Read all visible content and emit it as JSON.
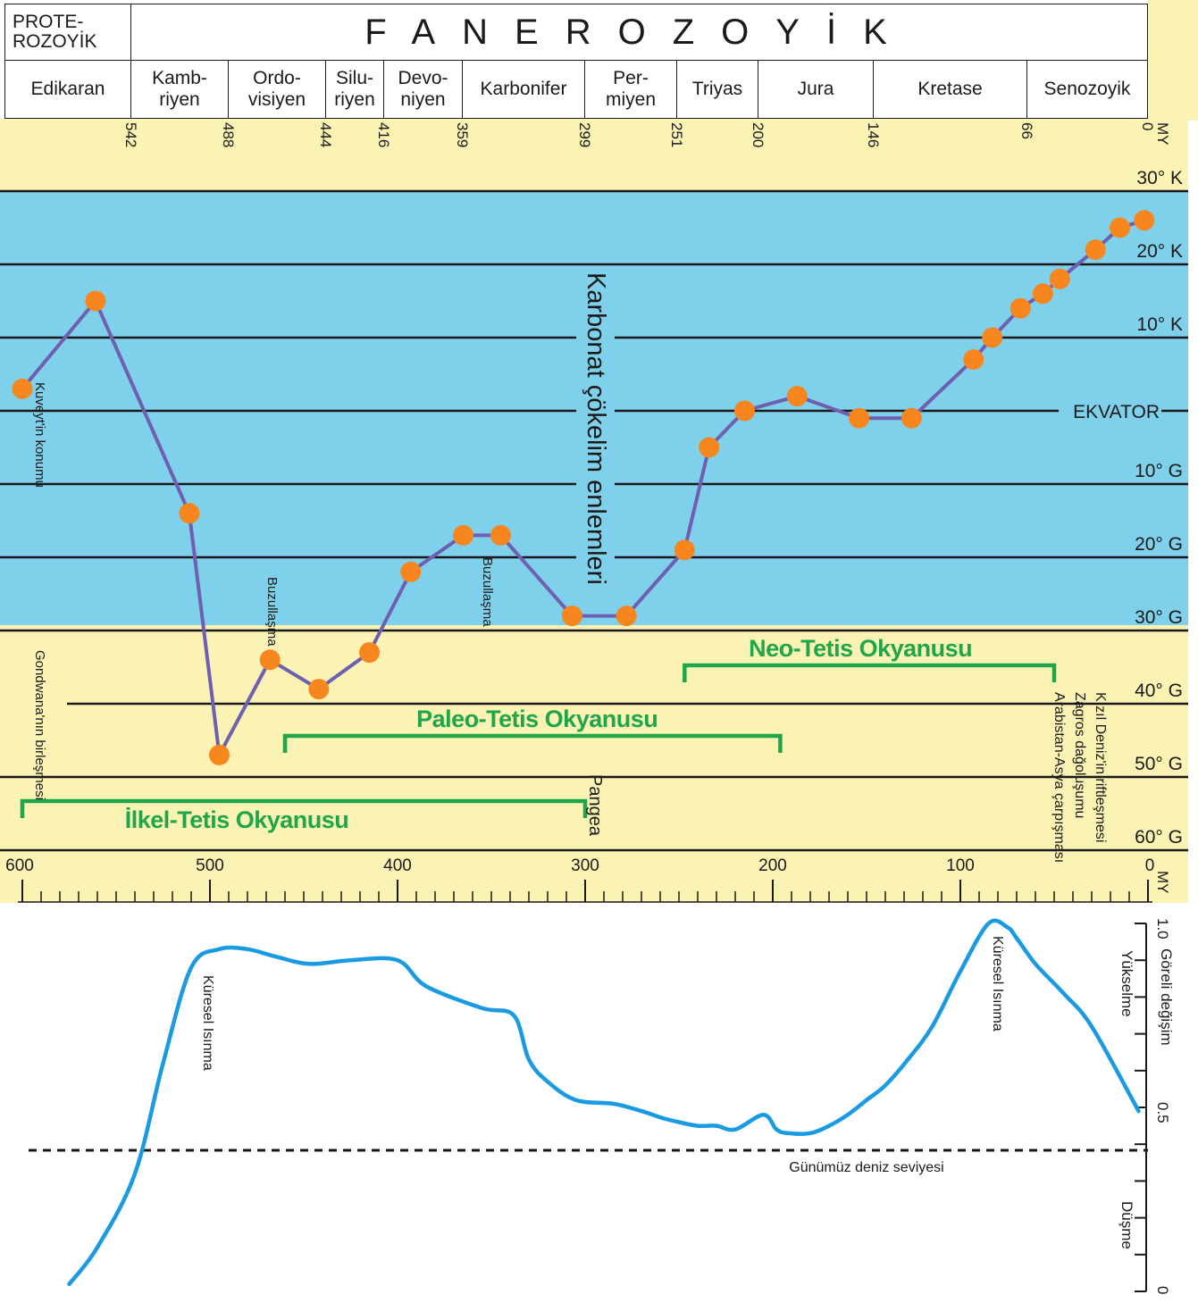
{
  "header": {
    "eon_pre": "PROTE-\nROZOYİK",
    "eon_phan": "FANEROZOYİK",
    "periods": [
      "Edikaran",
      "Kamb-\nriyen",
      "Ordo-\nvisiyen",
      "Silu-\nriyen",
      "Devo-\nniyen",
      "Karbonifer",
      "Per-\nmiyen",
      "Triyas",
      "Jura",
      "Kretase",
      "Senozoyik"
    ]
  },
  "colors": {
    "ocean": "#7fd0ea",
    "sand": "#fbf3b4",
    "line": "#6f5fb0",
    "dot": "#f7861e",
    "green": "#1fa64a",
    "curve": "#1a9ae0"
  },
  "top_axis": {
    "unit": "MY",
    "ticks": [
      "542",
      "488",
      "444",
      "416",
      "359",
      "299",
      "251",
      "200",
      "146",
      "66",
      "0"
    ]
  },
  "bottom_axis": {
    "unit": "MY",
    "ticks": [
      "600",
      "500",
      "400",
      "300",
      "200",
      "100",
      "0"
    ]
  },
  "chart_data": [
    {
      "type": "line",
      "title": "Karbonat çökelim enlemleri",
      "xlabel": "MY",
      "xlim": [
        600,
        0
      ],
      "ylim": [
        -60,
        30
      ],
      "y_tick_labels": [
        "30° K",
        "20° K",
        "10° K",
        "EKVATOR",
        "10° G",
        "20° G",
        "30° G",
        "40° G",
        "50° G",
        "60° G"
      ],
      "series": [
        {
          "name": "Kuveyt'in konumu",
          "x": [
            600,
            561,
            511,
            495,
            468,
            442,
            415,
            393,
            365,
            345,
            307,
            278,
            247,
            234,
            215,
            187,
            154,
            126,
            93,
            83,
            68,
            56,
            47,
            28,
            15,
            2
          ],
          "y": [
            3,
            15,
            -14,
            -47,
            -34,
            -38,
            -33,
            -22,
            -17,
            -17,
            -28,
            -28,
            -19,
            -5,
            0,
            2,
            -1,
            -1,
            7,
            10,
            14,
            16,
            18,
            22,
            25,
            26
          ]
        }
      ],
      "annotations": [
        "Kuveyt'in konumu",
        "Buzullaşma",
        "Buzullaşma",
        "Gondwana'nın birleşmesi",
        "Pangea",
        "Kızıl Deniz'in riftleşmesi",
        "Zagros dağoluşumu",
        "Arabistan-Asya çarpışması"
      ],
      "bands": [
        {
          "label": "İlkel-Tetis Okyanusu",
          "from": 600,
          "to": 300
        },
        {
          "label": "Paleo-Tetis Okyanusu",
          "from": 460,
          "to": 196
        },
        {
          "label": "Neo-Tetis Okyanusu",
          "from": 247,
          "to": 50
        }
      ]
    },
    {
      "type": "line",
      "title": "",
      "xlim": [
        600,
        0
      ],
      "ylim": [
        0,
        1.0
      ],
      "y_tick_labels": [
        "1.0",
        "0.5",
        "0"
      ],
      "ylabel": "Göreli değişim",
      "reference_label": "Günümüz deniz seviyesi",
      "reference_value": 0.4,
      "side_labels": [
        "Yükselme",
        "Düşme"
      ],
      "annotations": [
        "Küresel Isınma",
        "Küresel Isınma"
      ],
      "series": [
        {
          "x": [
            575,
            560,
            540,
            525,
            510,
            495,
            480,
            465,
            447,
            425,
            400,
            385,
            355,
            338,
            330,
            320,
            305,
            285,
            270,
            258,
            250,
            240,
            230,
            220,
            205,
            198,
            192,
            180,
            170,
            160,
            150,
            140,
            128,
            115,
            100,
            85,
            75,
            70,
            60,
            45,
            30,
            5
          ],
          "y": [
            0.02,
            0.12,
            0.32,
            0.62,
            0.88,
            0.93,
            0.93,
            0.91,
            0.89,
            0.9,
            0.9,
            0.83,
            0.77,
            0.75,
            0.63,
            0.57,
            0.52,
            0.51,
            0.49,
            0.47,
            0.46,
            0.45,
            0.45,
            0.44,
            0.48,
            0.44,
            0.43,
            0.43,
            0.45,
            0.48,
            0.52,
            0.56,
            0.63,
            0.72,
            0.87,
            1.0,
            0.99,
            0.96,
            0.89,
            0.81,
            0.72,
            0.49
          ]
        }
      ]
    }
  ]
}
